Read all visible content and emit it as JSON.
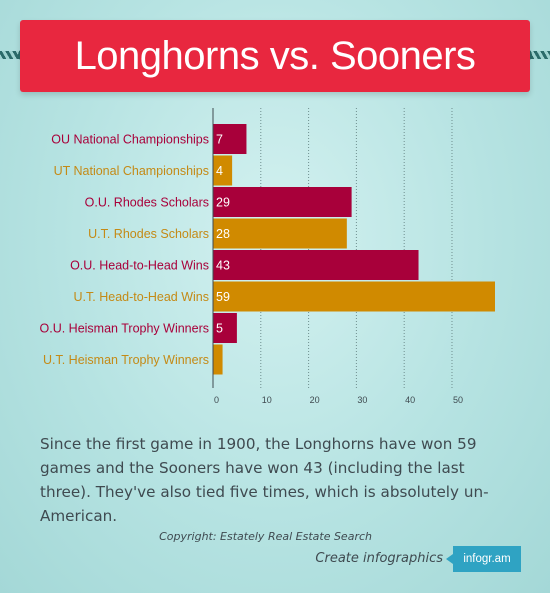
{
  "title": "Longhorns vs. Sooners",
  "description": "Since the first game in 1900, the Longhorns have won 59 games and the Sooners have won 43 (including the last three). They've also tied five times, which is absolutely un-American.",
  "copyright": "Copyright: Estately Real Estate Search",
  "create_label": "Create infographics",
  "badge_label": "infogr.am",
  "colors": {
    "ou": "#a8003a",
    "ut": "#d08a00",
    "ou_label": "#a8003a",
    "ut_label": "#c48a16"
  },
  "chart_data": {
    "type": "bar",
    "orientation": "horizontal",
    "categories": [
      "OU National Championships",
      "UT National Championships",
      "O.U. Rhodes Scholars",
      "U.T. Rhodes Scholars",
      "O.U. Head-to-Head Wins",
      "U.T. Head-to-Head Wins",
      "O.U. Heisman Trophy Winners",
      "U.T. Heisman Trophy Winners"
    ],
    "values": [
      7,
      4,
      29,
      28,
      43,
      59,
      5,
      2
    ],
    "value_labels": [
      "7",
      "4",
      "29",
      "28",
      "43",
      "59",
      "5",
      ""
    ],
    "team": [
      "ou",
      "ut",
      "ou",
      "ut",
      "ou",
      "ut",
      "ou",
      "ut"
    ],
    "xticks": [
      0,
      10,
      20,
      30,
      40,
      50
    ],
    "xlim": [
      0,
      59
    ],
    "grid": "vertical dotted"
  }
}
